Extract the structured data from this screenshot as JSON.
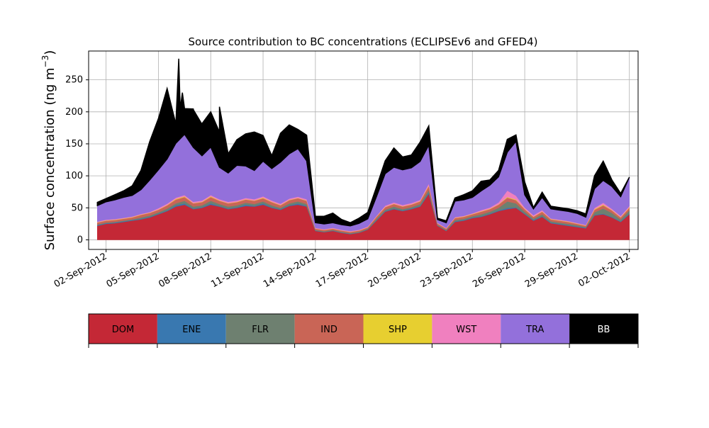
{
  "chart_data": {
    "type": "area",
    "stacked": true,
    "title": "Source contribution to BC concentrations (ECLIPSEv6 and GFED4)",
    "ylabel_main": "Surface concentration (ng m",
    "ylabel_sup": "−3",
    "ylabel_close": ")",
    "xlabel": "",
    "ylim": [
      -15,
      295
    ],
    "xlim": [
      "2012-09-01T00:00",
      "2012-10-02T12:00"
    ],
    "grid": true,
    "y_ticks": [
      0,
      50,
      100,
      150,
      200,
      250
    ],
    "x_ticks": [
      {
        "date": "2012-09-02",
        "label": "02-Sep-2012"
      },
      {
        "date": "2012-09-05",
        "label": "05-Sep-2012"
      },
      {
        "date": "2012-09-08",
        "label": "08-Sep-2012"
      },
      {
        "date": "2012-09-11",
        "label": "11-Sep-2012"
      },
      {
        "date": "2012-09-14",
        "label": "14-Sep-2012"
      },
      {
        "date": "2012-09-17",
        "label": "17-Sep-2012"
      },
      {
        "date": "2012-09-20",
        "label": "20-Sep-2012"
      },
      {
        "date": "2012-09-23",
        "label": "23-Sep-2012"
      },
      {
        "date": "2012-09-26",
        "label": "26-Sep-2012"
      },
      {
        "date": "2012-09-29",
        "label": "29-Sep-2012"
      },
      {
        "date": "2012-10-02",
        "label": "02-Oct-2012"
      }
    ],
    "legend_entries": [
      {
        "label": "DOM",
        "color": "#c42836",
        "text_color": "#000000"
      },
      {
        "label": "ENE",
        "color": "#3978b0",
        "text_color": "#000000"
      },
      {
        "label": "FLR",
        "color": "#6e8070",
        "text_color": "#000000"
      },
      {
        "label": "IND",
        "color": "#c96556",
        "text_color": "#000000"
      },
      {
        "label": "SHP",
        "color": "#e7cf30",
        "text_color": "#000000"
      },
      {
        "label": "WST",
        "color": "#f080bf",
        "text_color": "#000000"
      },
      {
        "label": "TRA",
        "color": "#9370db",
        "text_color": "#000000"
      },
      {
        "label": "BB",
        "color": "#000000",
        "text_color": "#ffffff"
      }
    ],
    "x": [
      "2012-09-01T12:00",
      "2012-09-02T00:00",
      "2012-09-02T12:00",
      "2012-09-03T00:00",
      "2012-09-03T12:00",
      "2012-09-04T00:00",
      "2012-09-04T12:00",
      "2012-09-05T00:00",
      "2012-09-05T12:00",
      "2012-09-06T00:00",
      "2012-09-06T12:00",
      "2012-09-07T00:00",
      "2012-09-07T12:00",
      "2012-09-08T00:00",
      "2012-09-08T12:00",
      "2012-09-09T00:00",
      "2012-09-09T12:00",
      "2012-09-10T00:00",
      "2012-09-10T12:00",
      "2012-09-11T00:00",
      "2012-09-11T12:00",
      "2012-09-12T00:00",
      "2012-09-12T12:00",
      "2012-09-13T00:00",
      "2012-09-13T12:00",
      "2012-09-14T00:00",
      "2012-09-14T12:00",
      "2012-09-15T00:00",
      "2012-09-15T12:00",
      "2012-09-16T00:00",
      "2012-09-16T12:00",
      "2012-09-17T00:00",
      "2012-09-17T12:00",
      "2012-09-18T00:00",
      "2012-09-18T12:00",
      "2012-09-19T00:00",
      "2012-09-19T12:00",
      "2012-09-20T00:00",
      "2012-09-20T12:00",
      "2012-09-21T00:00",
      "2012-09-21T12:00",
      "2012-09-22T00:00",
      "2012-09-22T12:00",
      "2012-09-23T00:00",
      "2012-09-23T12:00",
      "2012-09-24T00:00",
      "2012-09-24T12:00",
      "2012-09-25T00:00",
      "2012-09-25T12:00",
      "2012-09-26T00:00",
      "2012-09-26T12:00",
      "2012-09-27T00:00",
      "2012-09-27T12:00",
      "2012-09-28T00:00",
      "2012-09-28T12:00",
      "2012-09-29T00:00",
      "2012-09-29T12:00",
      "2012-09-30T00:00",
      "2012-09-30T12:00",
      "2012-10-01T00:00",
      "2012-10-01T12:00",
      "2012-10-02T00:00"
    ],
    "series": [
      {
        "name": "DOM",
        "color": "#c42836",
        "values": [
          22,
          25,
          26,
          28,
          30,
          32,
          35,
          40,
          45,
          52,
          55,
          48,
          50,
          55,
          52,
          48,
          50,
          53,
          52,
          55,
          50,
          47,
          53,
          55,
          52,
          14,
          12,
          14,
          11,
          9,
          11,
          16,
          30,
          44,
          48,
          45,
          48,
          52,
          72,
          22,
          14,
          28,
          30,
          34,
          36,
          40,
          45,
          48,
          50,
          40,
          30,
          36,
          26,
          24,
          22,
          20,
          18,
          38,
          40,
          35,
          28,
          40
        ]
      },
      {
        "name": "ENE",
        "color": "#3978b0",
        "values": [
          1,
          1,
          1,
          1,
          1,
          1,
          1,
          1,
          1,
          2,
          2,
          1,
          1,
          2,
          1,
          1,
          1,
          2,
          1,
          2,
          1,
          1,
          1,
          2,
          1,
          0.5,
          0.5,
          0.5,
          0.5,
          0.5,
          0.5,
          0.5,
          1,
          1,
          1,
          1,
          1,
          1,
          2,
          0.5,
          0.5,
          1,
          1,
          1,
          1,
          1,
          1,
          2,
          1,
          1,
          1,
          1,
          1,
          1,
          1,
          1,
          1,
          1,
          1,
          1,
          1,
          1
        ]
      },
      {
        "name": "FLR",
        "color": "#6e8070",
        "values": [
          1,
          1,
          1,
          1,
          1,
          2,
          2,
          2,
          3,
          3,
          4,
          3,
          3,
          4,
          3,
          3,
          3,
          3,
          3,
          3,
          3,
          2,
          3,
          3,
          3,
          1,
          1,
          1,
          1,
          1,
          1,
          1,
          2,
          2,
          3,
          2,
          2,
          3,
          4,
          1,
          1,
          2,
          2,
          2,
          3,
          3,
          4,
          10,
          6,
          3,
          2,
          3,
          2,
          2,
          2,
          2,
          1,
          4,
          8,
          6,
          3,
          5
        ]
      },
      {
        "name": "IND",
        "color": "#c96556",
        "values": [
          3,
          3,
          3,
          3,
          3,
          4,
          4,
          4,
          5,
          6,
          6,
          5,
          5,
          6,
          5,
          5,
          5,
          5,
          5,
          5,
          5,
          4,
          5,
          5,
          5,
          2,
          2,
          2,
          2,
          2,
          2,
          2,
          3,
          4,
          4,
          4,
          4,
          4,
          6,
          2,
          2,
          3,
          3,
          3,
          4,
          4,
          5,
          6,
          5,
          4,
          3,
          4,
          3,
          3,
          3,
          2,
          2,
          4,
          5,
          4,
          3,
          4
        ]
      },
      {
        "name": "SHP",
        "color": "#e7cf30",
        "values": [
          0.5,
          0.5,
          0.5,
          0.5,
          0.5,
          0.5,
          0.5,
          0.5,
          0.5,
          1,
          1,
          0.5,
          0.5,
          1,
          0.5,
          0.5,
          0.5,
          0.5,
          0.5,
          1,
          0.5,
          0.5,
          0.5,
          0.5,
          0.5,
          0.3,
          0.3,
          0.3,
          0.3,
          0.3,
          0.3,
          0.3,
          0.5,
          0.5,
          0.5,
          0.5,
          0.5,
          0.5,
          1,
          0.3,
          0.3,
          0.5,
          0.5,
          0.5,
          0.5,
          0.5,
          0.5,
          1,
          1,
          0.5,
          0.5,
          0.5,
          0.5,
          0.5,
          0.5,
          0.5,
          0.5,
          1,
          1,
          0.5,
          0.5,
          1
        ]
      },
      {
        "name": "WST",
        "color": "#f080bf",
        "values": [
          1,
          1,
          1,
          1,
          1,
          1,
          1,
          2,
          2,
          2,
          2,
          2,
          2,
          2,
          2,
          2,
          2,
          2,
          2,
          2,
          2,
          2,
          2,
          2,
          2,
          1,
          1,
          1,
          1,
          1,
          1,
          1,
          1,
          2,
          2,
          2,
          2,
          2,
          3,
          1,
          1,
          1,
          1,
          1,
          2,
          2,
          3,
          10,
          6,
          2,
          2,
          2,
          1,
          1,
          1,
          1,
          1,
          2,
          3,
          2,
          2,
          2
        ]
      },
      {
        "name": "TRA",
        "color": "#9370db",
        "values": [
          25,
          28,
          30,
          32,
          33,
          38,
          50,
          60,
          70,
          85,
          95,
          85,
          70,
          75,
          50,
          45,
          55,
          50,
          45,
          55,
          50,
          65,
          70,
          75,
          60,
          8,
          8,
          8,
          8,
          8,
          10,
          12,
          30,
          50,
          55,
          55,
          55,
          60,
          60,
          5,
          8,
          25,
          25,
          25,
          30,
          35,
          40,
          60,
          85,
          20,
          10,
          20,
          15,
          15,
          15,
          15,
          12,
          30,
          35,
          35,
          30,
          45
        ]
      },
      {
        "name": "BB",
        "color": "#000000",
        "values": [
          5,
          5,
          8,
          10,
          15,
          30,
          60,
          80,
          110,
          30,
          40,
          60,
          50,
          55,
          55,
          30,
          40,
          50,
          60,
          40,
          20,
          45,
          45,
          30,
          40,
          10,
          12,
          15,
          8,
          5,
          8,
          10,
          15,
          20,
          30,
          20,
          20,
          30,
          30,
          2,
          3,
          5,
          8,
          10,
          15,
          8,
          10,
          20,
          10,
          20,
          2,
          8,
          4,
          4,
          4,
          4,
          5,
          20,
          30,
          10,
          5,
          0
        ]
      }
    ],
    "total_extra_peaks": [
      {
        "x": "2012-09-06T04:00",
        "total": 283
      },
      {
        "x": "2012-09-06T09:00",
        "total": 230
      },
      {
        "x": "2012-09-06T06:00",
        "total": 205
      },
      {
        "x": "2012-09-07T06:00",
        "total": 165
      },
      {
        "x": "2012-09-08T12:00",
        "total": 208
      }
    ]
  }
}
